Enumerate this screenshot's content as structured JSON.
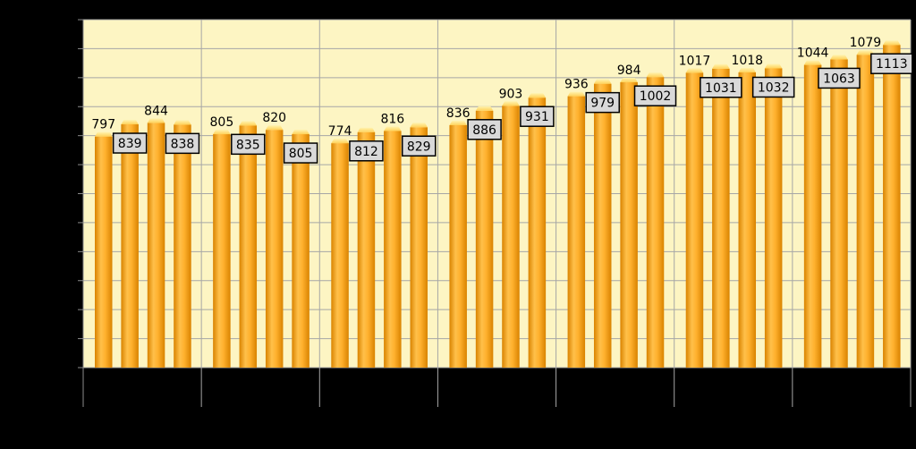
{
  "chart_data": {
    "type": "bar",
    "groups": 7,
    "bars_per_group": 4,
    "values": [
      797,
      839,
      844,
      838,
      805,
      835,
      820,
      805,
      774,
      812,
      816,
      829,
      836,
      886,
      903,
      931,
      936,
      979,
      984,
      1002,
      1017,
      1031,
      1018,
      1032,
      1044,
      1063,
      1079,
      1113
    ],
    "ylim": [
      0,
      1200
    ],
    "grid": true,
    "legend": "none",
    "title": "",
    "xlabel": "",
    "ylabel": ""
  },
  "colors": {
    "background": "#000000",
    "plot_area": "#fdf5c3",
    "gridline": "#a6a6a6",
    "bar_light": "#ffe08a",
    "bar_mid": "#ffb43c",
    "bar_dark": "#e08a00",
    "label_box": "#d9d9d9"
  }
}
